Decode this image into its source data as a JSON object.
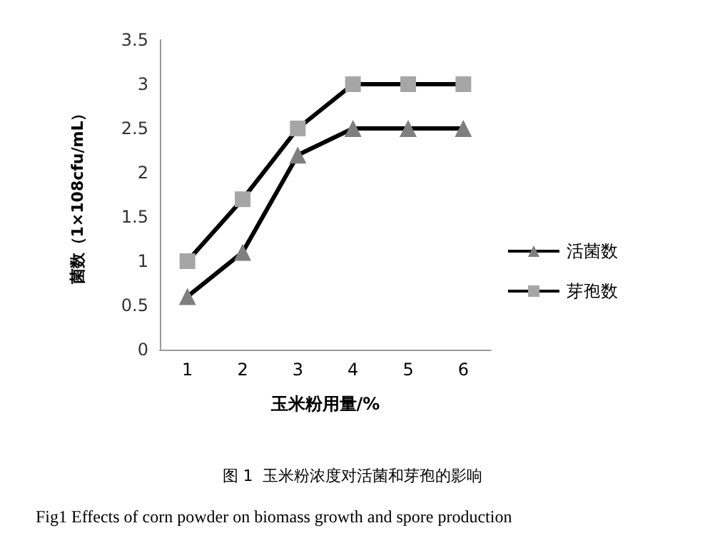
{
  "chart_data": {
    "type": "line",
    "xlabel": "玉米粉用量/%",
    "ylabel": "菌数（1×108cfu/mL）",
    "categories": [
      "1",
      "2",
      "3",
      "4",
      "5",
      "6"
    ],
    "series": [
      {
        "name": "活菌数",
        "color": "#7f7f7f",
        "marker": "triangle",
        "values": [
          0.6,
          1.1,
          2.2,
          2.5,
          2.5,
          2.5
        ]
      },
      {
        "name": "芽孢数",
        "color": "#a6a6a6",
        "marker": "square",
        "values": [
          1.0,
          1.7,
          2.5,
          3.0,
          3.0,
          3.0
        ]
      }
    ],
    "ylim": [
      0,
      3.5
    ],
    "yticks": [
      0,
      0.5,
      1,
      1.5,
      2,
      2.5,
      3,
      3.5
    ],
    "grid": false,
    "legend": "right",
    "annotations": [
      "图 1  玉米粉浓度对活菌和芽孢的影响",
      "Fig1 Effects of corn powder on biomass growth and spore production"
    ]
  }
}
